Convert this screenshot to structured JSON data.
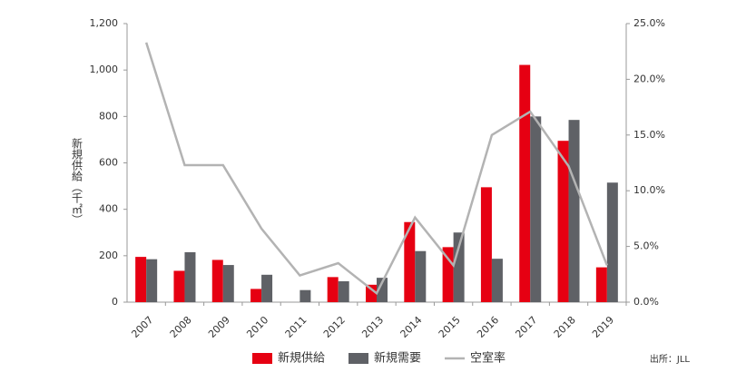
{
  "chart_data": {
    "type": "bar_line",
    "categories": [
      "2007",
      "2008",
      "2009",
      "2010",
      "2011",
      "2012",
      "2013",
      "2014",
      "2015",
      "2016",
      "2017",
      "2018",
      "2019"
    ],
    "series": [
      {
        "name": "新規供給",
        "color": "#e60012",
        "values": [
          195,
          135,
          182,
          57,
          0,
          108,
          75,
          345,
          237,
          495,
          1022,
          695,
          150
        ]
      },
      {
        "name": "新規需要",
        "color": "#5f6166",
        "values": [
          185,
          215,
          160,
          118,
          52,
          90,
          105,
          220,
          300,
          187,
          800,
          785,
          515
        ]
      },
      {
        "name": "空室率",
        "color": "#b3b3b3",
        "axis": "y2",
        "type": "line",
        "values": [
          23.3,
          12.3,
          12.3,
          6.6,
          2.4,
          3.5,
          0.8,
          7.6,
          3.3,
          15.0,
          17.1,
          12.2,
          3.3
        ]
      }
    ],
    "ylabel": "新規供給（千㎡）",
    "ylim": [
      0,
      1200
    ],
    "yticks": [
      0,
      200,
      400,
      600,
      800,
      {
        "value": 1000,
        "label": "1,000"
      },
      {
        "value": 1200,
        "label": "1,200"
      }
    ],
    "y2lim": [
      0,
      25
    ],
    "y2ticks": [
      {
        "value": 0,
        "label": "0.0%"
      },
      {
        "value": 5,
        "label": "5.0%"
      },
      {
        "value": 10,
        "label": "10.0%"
      },
      {
        "value": 15,
        "label": "15.0%"
      },
      {
        "value": 20,
        "label": "20.0%"
      },
      {
        "value": 25,
        "label": "25.0%"
      }
    ],
    "source": "出所：JLL"
  }
}
